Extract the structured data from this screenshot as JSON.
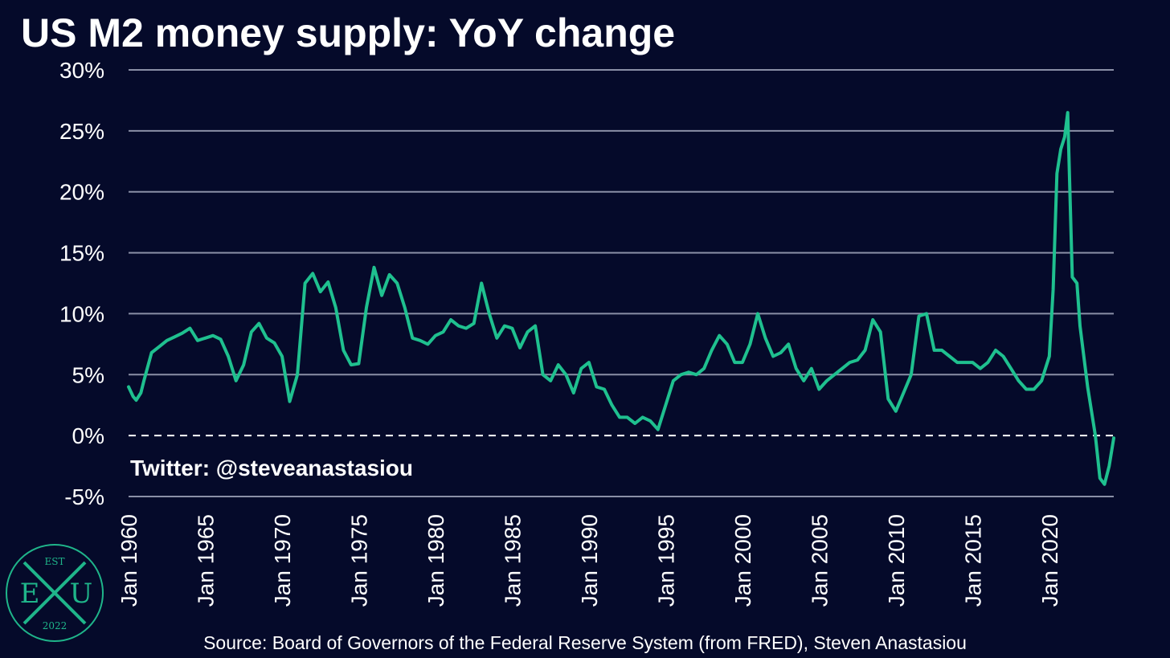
{
  "title": "US M2 money supply: YoY change",
  "twitter_handle": "Twitter: @steveanastasiou",
  "source": "Source: Board of Governors of the Federal Reserve System (from FRED), Steven Anastasiou",
  "logo": {
    "top": "EST",
    "left": "E",
    "right": "U",
    "bottom": "2022"
  },
  "colors": {
    "background": "#050a2a",
    "line": "#1fc08f",
    "grid": "#8a8fa6",
    "text": "#ffffff"
  },
  "chart_data": {
    "type": "line",
    "title": "US M2 money supply: YoY change",
    "xlabel": "",
    "ylabel": "",
    "y_ticks": [
      "30%",
      "25%",
      "20%",
      "15%",
      "10%",
      "5%",
      "0%",
      "-5%"
    ],
    "y_tick_values": [
      30,
      25,
      20,
      15,
      10,
      5,
      0,
      -5
    ],
    "ylim": [
      -5,
      30
    ],
    "xlim": [
      1960.0,
      2024.2
    ],
    "x_ticks": [
      "Jan 1960",
      "Jan 1965",
      "Jan 1970",
      "Jan 1975",
      "Jan 1980",
      "Jan 1985",
      "Jan 1990",
      "Jan 1995",
      "Jan 2000",
      "Jan 2005",
      "Jan 2010",
      "Jan 2015",
      "Jan 2020"
    ],
    "x_tick_values": [
      1960,
      1965,
      1970,
      1975,
      1980,
      1985,
      1990,
      1995,
      2000,
      2005,
      2010,
      2015,
      2020
    ],
    "zero_line": "dashed",
    "grid": true,
    "series": [
      {
        "x": [
          1960.0,
          1960.3,
          1960.5,
          1960.8,
          1961.0,
          1961.5,
          1962.0,
          1962.5,
          1963.0,
          1963.5,
          1964.0,
          1964.5,
          1965.0,
          1965.5,
          1966.0,
          1966.5,
          1967.0,
          1967.5,
          1968.0,
          1968.5,
          1969.0,
          1969.5,
          1970.0,
          1970.5,
          1971.0,
          1971.5,
          1972.0,
          1972.5,
          1973.0,
          1973.5,
          1974.0,
          1974.5,
          1975.0,
          1975.5,
          1976.0,
          1976.5,
          1977.0,
          1977.5,
          1978.0,
          1978.5,
          1979.0,
          1979.5,
          1980.0,
          1980.5,
          1981.0,
          1981.5,
          1982.0,
          1982.5,
          1983.0,
          1983.5,
          1984.0,
          1984.5,
          1985.0,
          1985.5,
          1986.0,
          1986.5,
          1987.0,
          1987.5,
          1988.0,
          1988.5,
          1989.0,
          1989.5,
          1990.0,
          1990.5,
          1991.0,
          1991.5,
          1992.0,
          1992.5,
          1993.0,
          1993.5,
          1994.0,
          1994.5,
          1995.0,
          1995.5,
          1996.0,
          1996.5,
          1997.0,
          1997.5,
          1998.0,
          1998.5,
          1999.0,
          1999.5,
          2000.0,
          2000.5,
          2001.0,
          2001.5,
          2002.0,
          2002.5,
          2003.0,
          2003.5,
          2004.0,
          2004.5,
          2005.0,
          2005.5,
          2006.0,
          2006.5,
          2007.0,
          2007.5,
          2008.0,
          2008.5,
          2009.0,
          2009.5,
          2010.0,
          2010.5,
          2011.0,
          2011.5,
          2012.0,
          2012.5,
          2013.0,
          2013.5,
          2014.0,
          2014.5,
          2015.0,
          2015.5,
          2016.0,
          2016.5,
          2017.0,
          2017.5,
          2018.0,
          2018.5,
          2019.0,
          2019.5,
          2020.0,
          2020.25,
          2020.5,
          2020.75,
          2021.0,
          2021.2,
          2021.5,
          2021.8,
          2022.0,
          2022.5,
          2023.0,
          2023.3,
          2023.6,
          2023.9,
          2024.2
        ],
        "values": [
          4.0,
          3.2,
          2.9,
          3.5,
          4.5,
          6.8,
          7.3,
          7.8,
          8.1,
          8.4,
          8.8,
          7.8,
          8.0,
          8.2,
          7.9,
          6.5,
          4.5,
          5.8,
          8.5,
          9.2,
          8.0,
          7.6,
          6.5,
          2.8,
          5.0,
          12.5,
          13.3,
          11.8,
          12.6,
          10.5,
          7.0,
          5.8,
          5.9,
          10.5,
          13.8,
          11.5,
          13.2,
          12.5,
          10.5,
          8.0,
          7.8,
          7.5,
          8.2,
          8.5,
          9.5,
          9.0,
          8.8,
          9.2,
          12.5,
          10.0,
          8.0,
          9.0,
          8.8,
          7.2,
          8.5,
          9.0,
          5.0,
          4.5,
          5.8,
          5.0,
          3.5,
          5.5,
          6.0,
          4.0,
          3.8,
          2.5,
          1.5,
          1.5,
          1.0,
          1.5,
          1.2,
          0.5,
          2.5,
          4.5,
          5.0,
          5.2,
          5.0,
          5.5,
          7.0,
          8.2,
          7.5,
          6.0,
          6.0,
          7.5,
          10.0,
          8.0,
          6.5,
          6.8,
          7.5,
          5.5,
          4.5,
          5.5,
          3.8,
          4.5,
          5.0,
          5.5,
          6.0,
          6.2,
          7.0,
          9.5,
          8.5,
          3.0,
          2.0,
          3.5,
          5.0,
          9.8,
          10.0,
          7.0,
          7.0,
          6.5,
          6.0,
          6.0,
          6.0,
          5.5,
          6.0,
          7.0,
          6.5,
          5.5,
          4.5,
          3.8,
          3.8,
          4.5,
          6.5,
          12.0,
          21.5,
          23.5,
          24.5,
          26.5,
          13.0,
          12.5,
          9.0,
          4.0,
          0.0,
          -3.5,
          -4.0,
          -2.5,
          -0.2
        ]
      }
    ]
  }
}
